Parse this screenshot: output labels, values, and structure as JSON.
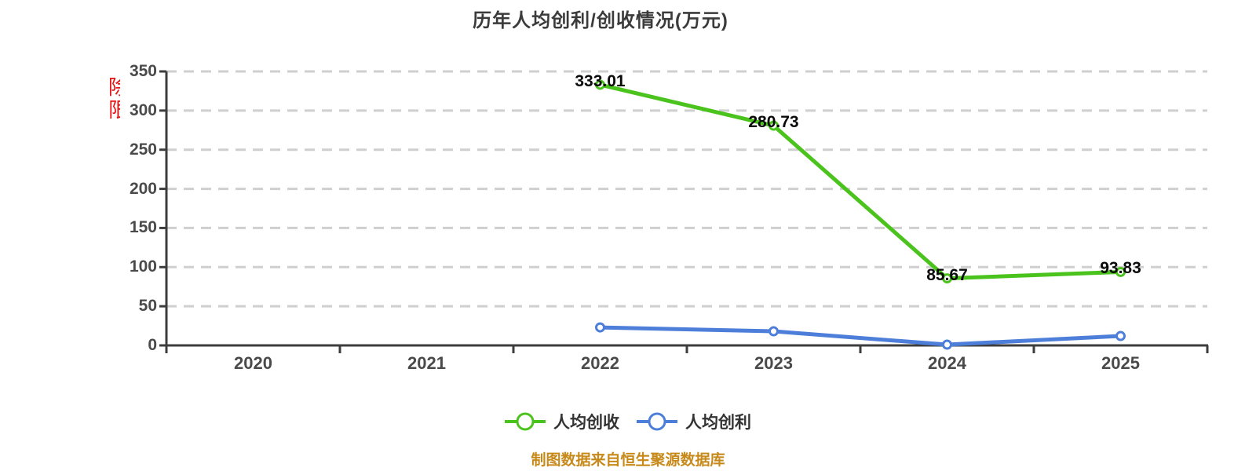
{
  "title": "历年人均创利/创收情况(万元)",
  "footer_note": "制图数据来自恒生聚源数据库",
  "red_marker": {
    "line1": "除",
    "line2": "限"
  },
  "colors": {
    "revenue_green": "#4bc31d",
    "profit_blue": "#4d7ed9",
    "marker_red": "#e81212",
    "footer_gold": "#c78a1a",
    "axis": "#3d3d3d",
    "grid": "#cfcfcf",
    "label_dark": "#4a4a4a",
    "data_label": "#0a0a0a"
  },
  "chart_data": {
    "type": "line",
    "title": "历年人均创利/创收情况(万元)",
    "categories": [
      "2020",
      "2021",
      "2022",
      "2023",
      "2024",
      "2025"
    ],
    "series": [
      {
        "name": "人均创收",
        "color": "#4bc31d",
        "values": [
          null,
          null,
          333.01,
          280.73,
          85.67,
          93.83
        ],
        "data_labels": [
          null,
          null,
          "333.01",
          "280.73",
          "85.67",
          "93.83"
        ]
      },
      {
        "name": "人均创利",
        "color": "#4d7ed9",
        "values": [
          null,
          null,
          23,
          18,
          1,
          12
        ],
        "data_labels": null,
        "estimated": true
      }
    ],
    "xlabel": "",
    "ylabel": "",
    "ylim": [
      0,
      350
    ],
    "y_ticks": [
      0,
      50,
      100,
      150,
      200,
      250,
      300,
      350
    ],
    "grid": "horizontal-dashed",
    "legend_position": "bottom"
  }
}
